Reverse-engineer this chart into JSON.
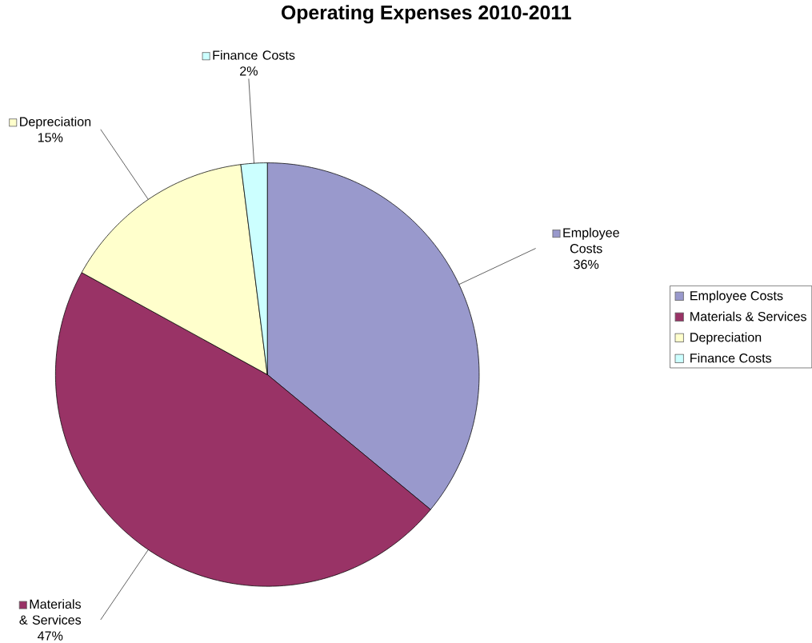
{
  "chart_data": {
    "type": "pie",
    "title": "Operating Expenses 2010-2011",
    "categories": [
      "Employee Costs",
      "Materials & Services",
      "Depreciation",
      "Finance Costs"
    ],
    "values": [
      36,
      47,
      15,
      2
    ],
    "value_labels": [
      "36%",
      "47%",
      "15%",
      "2%"
    ],
    "colors": [
      "#9999cc",
      "#993366",
      "#ffffcc",
      "#ccffff"
    ],
    "legend": "right"
  }
}
